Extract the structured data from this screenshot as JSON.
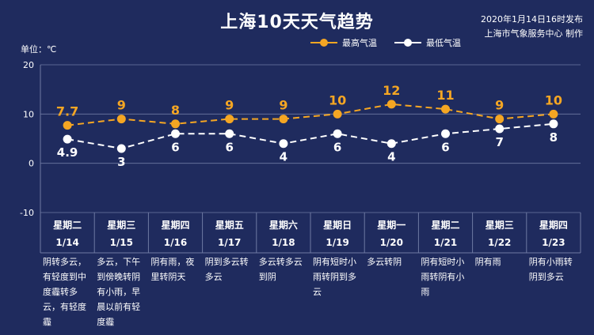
{
  "header": {
    "title": "上海10天天气趋势",
    "publish_time": "2020年1月14日16时发布",
    "publisher": "上海市气象服务中心 制作"
  },
  "unit_label": "单位：℃",
  "colors": {
    "background": "#1f2b5e",
    "high": "#f5a623",
    "low": "#ffffff",
    "grid": "#6f7aa3"
  },
  "chart_data": {
    "type": "line",
    "ylim": [
      -10,
      20
    ],
    "yticks": [
      -10,
      0,
      10,
      20
    ],
    "grid": true,
    "legend_position": "top-right",
    "categories": [
      "星期二 1/14",
      "星期三 1/15",
      "星期四 1/16",
      "星期五 1/17",
      "星期六 1/18",
      "星期日 1/19",
      "星期一 1/20",
      "星期二 1/21",
      "星期三 1/22",
      "星期四 1/23"
    ],
    "series": [
      {
        "name": "最高气温",
        "values": [
          7.7,
          9,
          8,
          9,
          9,
          10,
          12,
          11,
          9,
          10
        ]
      },
      {
        "name": "最低气温",
        "values": [
          4.9,
          3,
          6,
          6,
          4,
          6,
          4,
          6,
          7,
          8
        ]
      }
    ]
  },
  "days": [
    {
      "weekday": "星期二",
      "date": "1/14",
      "weather": "阴转多云，有轻度到中度霾转多云，有轻度霾"
    },
    {
      "weekday": "星期三",
      "date": "1/15",
      "weather": "多云，下午到傍晚转阴有小雨，早晨以前有轻度霾"
    },
    {
      "weekday": "星期四",
      "date": "1/16",
      "weather": "阴有雨，夜里转阴天"
    },
    {
      "weekday": "星期五",
      "date": "1/17",
      "weather": "阴到多云转多云"
    },
    {
      "weekday": "星期六",
      "date": "1/18",
      "weather": "多云转多云到阴"
    },
    {
      "weekday": "星期日",
      "date": "1/19",
      "weather": "阴有短时小雨转阴到多云"
    },
    {
      "weekday": "星期一",
      "date": "1/20",
      "weather": "多云转阴"
    },
    {
      "weekday": "星期二",
      "date": "1/21",
      "weather": "阴有短时小雨转阴有小雨"
    },
    {
      "weekday": "星期三",
      "date": "1/22",
      "weather": "阴有雨"
    },
    {
      "weekday": "星期四",
      "date": "1/23",
      "weather": "阴有小雨转阴到多云"
    }
  ]
}
